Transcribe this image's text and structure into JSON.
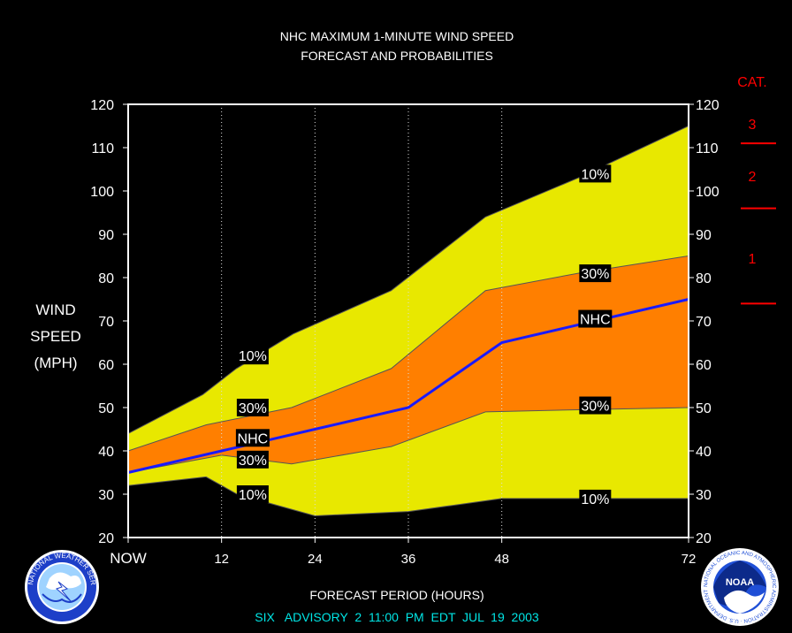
{
  "chart_data": {
    "type": "area",
    "title": "NHC MAXIMUM 1-MINUTE WIND SPEED",
    "subtitle": "FORECAST AND PROBABILITIES",
    "ylabel": [
      "WIND",
      "SPEED",
      "(MPH)"
    ],
    "xlabel": "FORECAST PERIOD (HOURS)",
    "footer": "SIX   ADVISORY  2  11:00  PM  EDT  JUL  19  2003",
    "ylim": [
      20,
      120
    ],
    "yticks": [
      20,
      30,
      40,
      50,
      60,
      70,
      80,
      90,
      100,
      110,
      120
    ],
    "xlim": [
      0,
      72
    ],
    "xticks": [
      {
        "x": 0,
        "label": "NOW"
      },
      {
        "x": 12,
        "label": "12"
      },
      {
        "x": 24,
        "label": "24"
      },
      {
        "x": 36,
        "label": "36"
      },
      {
        "x": 48,
        "label": "48"
      },
      {
        "x": 72,
        "label": "72"
      }
    ],
    "gridlines_x": [
      12,
      24,
      36,
      48
    ],
    "series": [
      {
        "name": "10%",
        "role": "upper",
        "x": [
          0,
          9.6,
          13.9,
          21.2,
          33.8,
          45.9,
          57.8,
          72
        ],
        "y": [
          44,
          53,
          59,
          67,
          77,
          94,
          103,
          115
        ]
      },
      {
        "name": "30%",
        "role": "upper",
        "x": [
          0,
          10,
          21,
          33.8,
          45.9,
          57.8,
          72
        ],
        "y": [
          40,
          46,
          50,
          59,
          77,
          81,
          85
        ]
      },
      {
        "name": "NHC",
        "role": "forecast",
        "x": [
          0,
          12,
          24,
          36,
          48,
          60,
          72
        ],
        "y": [
          35,
          40,
          45,
          50,
          65,
          70,
          75
        ]
      },
      {
        "name": "30%",
        "role": "lower",
        "x": [
          0,
          12,
          21,
          33.8,
          45.9,
          57.8,
          72
        ],
        "y": [
          35,
          39,
          37,
          41,
          49,
          49.5,
          50
        ]
      },
      {
        "name": "10%",
        "role": "lower",
        "x": [
          0,
          10,
          14,
          24,
          36,
          48,
          72
        ],
        "y": [
          32,
          34,
          30,
          25,
          26,
          29,
          29
        ]
      }
    ],
    "labels": [
      {
        "text": "10%",
        "x": 16,
        "y": 62
      },
      {
        "text": "30%",
        "x": 16,
        "y": 50
      },
      {
        "text": "NHC",
        "x": 16,
        "y": 43
      },
      {
        "text": "30%",
        "x": 16,
        "y": 38
      },
      {
        "text": "10%",
        "x": 16,
        "y": 30
      },
      {
        "text": "10%",
        "x": 60,
        "y": 104
      },
      {
        "text": "30%",
        "x": 60,
        "y": 81
      },
      {
        "text": "NHC",
        "x": 60,
        "y": 70.5
      },
      {
        "text": "30%",
        "x": 60,
        "y": 50.5
      },
      {
        "text": "10%",
        "x": 60,
        "y": 29
      }
    ],
    "categories_scale": {
      "title": "CAT.",
      "cats": [
        {
          "label": "3",
          "y": 115.5
        },
        {
          "label": "2",
          "y": 103.5
        },
        {
          "label": "1",
          "y": 84.5
        }
      ],
      "thresholds": [
        111,
        96,
        74
      ]
    },
    "colors": {
      "outer_band": "#e8e800",
      "inner_band": "#ff7f00",
      "forecast_line": "#1a1aff",
      "category": "#ff0000",
      "footer": "#00e5e5"
    },
    "logos": {
      "left": "NATIONAL WEATHER SERVICE",
      "right_outer": "NATIONAL OCEANIC AND ATMOSPHERIC ADMINISTRATION · U.S. DEPARTMENT OF COMMERCE",
      "right_center": "NOAA"
    }
  }
}
